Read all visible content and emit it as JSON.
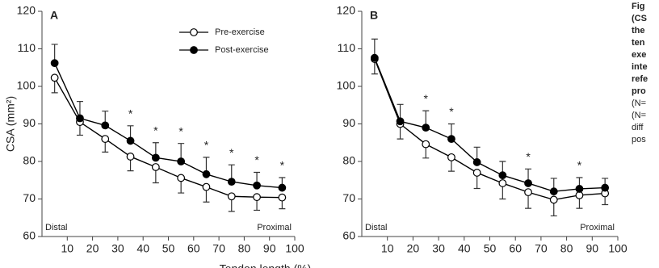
{
  "chart_data": [
    {
      "type": "line",
      "panel": "A",
      "y_label": "CSA (mm²)",
      "x_label": "Tendon length (%)",
      "x": [
        5,
        15,
        25,
        35,
        45,
        55,
        65,
        75,
        85,
        95
      ],
      "xlim": [
        0,
        100
      ],
      "xticks": [
        10,
        20,
        30,
        40,
        50,
        60,
        70,
        80,
        90,
        100
      ],
      "ylim": [
        60,
        120
      ],
      "yticks": [
        60,
        70,
        80,
        90,
        100,
        110,
        120
      ],
      "legend": true,
      "left_note": "Distal",
      "right_note": "Proximal",
      "significance": {
        "label": "*",
        "x": [
          35,
          45,
          55,
          65,
          75,
          85,
          95
        ]
      },
      "series": [
        {
          "name": "Pre-exercise",
          "color": "#ffffff",
          "error_direction": "down",
          "values": [
            102.3,
            90.5,
            86,
            81.3,
            78.5,
            75.6,
            73.2,
            70.7,
            70.5,
            70.4
          ],
          "error": [
            4,
            3.5,
            3.5,
            3.8,
            4.2,
            4,
            4,
            4,
            3.5,
            3
          ]
        },
        {
          "name": "Post-exercise",
          "color": "#000000",
          "error_direction": "up",
          "values": [
            106.2,
            91.5,
            89.6,
            85.5,
            81,
            80,
            76.6,
            74.6,
            73.6,
            73
          ],
          "error": [
            5,
            4.5,
            3.8,
            4,
            4,
            4.8,
            4.5,
            4.5,
            3.5,
            2.7
          ]
        }
      ]
    },
    {
      "type": "line",
      "panel": "B",
      "x": [
        5,
        15,
        25,
        35,
        45,
        55,
        65,
        75,
        85,
        95
      ],
      "xlim": [
        0,
        100
      ],
      "xticks": [
        10,
        20,
        30,
        40,
        50,
        60,
        70,
        80,
        90,
        100
      ],
      "ylim": [
        60,
        120
      ],
      "yticks": [
        60,
        70,
        80,
        90,
        100,
        110,
        120
      ],
      "legend": false,
      "left_note": "Distal",
      "right_note": "Proximal",
      "significance": {
        "label": "*",
        "x": [
          25,
          35,
          65,
          85
        ]
      },
      "series": [
        {
          "name": "Pre-exercise",
          "color": "#ffffff",
          "error_direction": "down",
          "values": [
            107.3,
            90,
            84.6,
            81.1,
            77,
            74.2,
            71.8,
            69.8,
            71,
            71.5
          ],
          "error": [
            4,
            4,
            3.7,
            3.7,
            4.2,
            4.2,
            4.3,
            4.3,
            3.5,
            3
          ]
        },
        {
          "name": "Post-exercise",
          "color": "#000000",
          "error_direction": "up",
          "values": [
            107.6,
            90.7,
            89,
            86,
            79.8,
            76.3,
            74.2,
            72,
            72.7,
            73
          ],
          "error": [
            5,
            4.5,
            4.5,
            4,
            4,
            3.7,
            3.8,
            3.5,
            3,
            2.5
          ]
        }
      ]
    }
  ],
  "caption": {
    "bold": [
      "Fig",
      "(CS",
      "the",
      "ten",
      "exe",
      "inte",
      "refe",
      "pro"
    ],
    "regular": [
      "(N=",
      "(N=",
      "diff",
      "pos"
    ]
  }
}
